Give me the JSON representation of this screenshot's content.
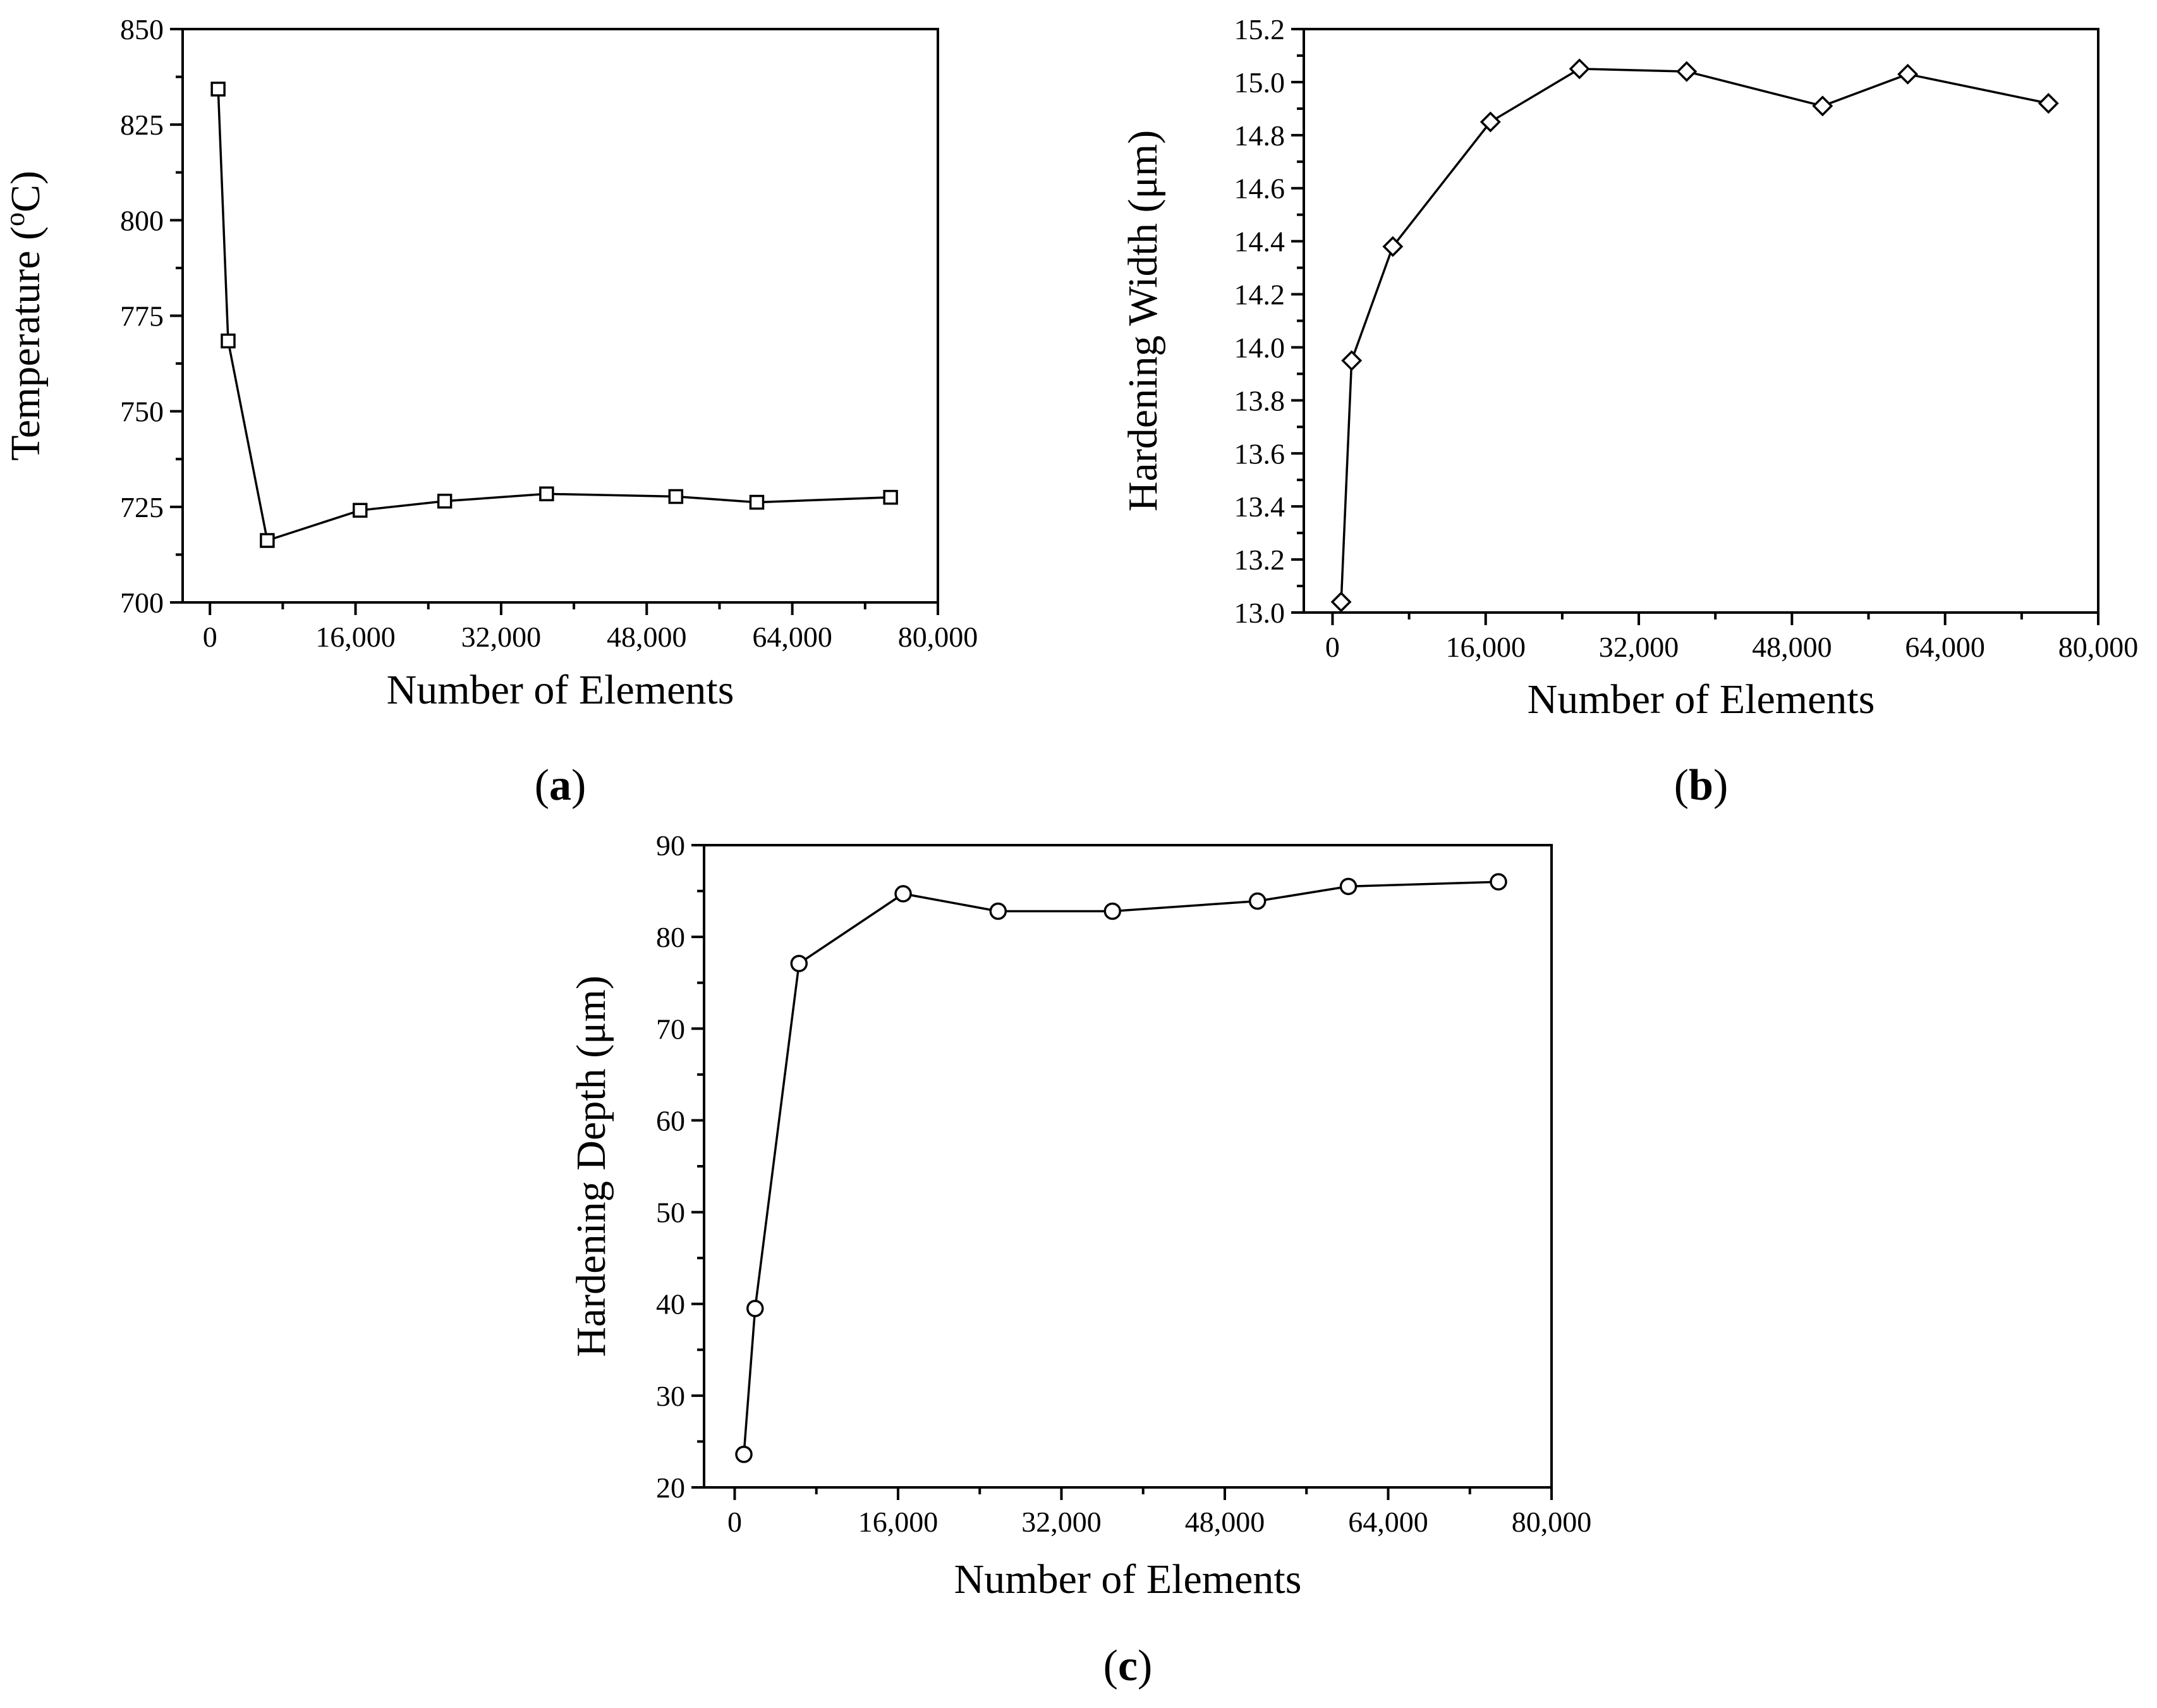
{
  "chart_data": [
    {
      "panel": "(a)",
      "panel_letter": "a",
      "type": "line",
      "marker": "square",
      "xlabel": "Number of Elements",
      "ylabel_main": "Temperature (",
      "ylabel_sup": "o",
      "ylabel_end": "C)",
      "xlim": [
        -3000,
        80000
      ],
      "ylim": [
        700,
        850
      ],
      "xticks": [
        0,
        16000,
        32000,
        48000,
        64000,
        80000
      ],
      "xtick_labels": [
        "0",
        "16,000",
        "32,000",
        "48,000",
        "64,000",
        "80,000"
      ],
      "yticks": [
        700,
        725,
        750,
        775,
        800,
        825,
        850
      ],
      "ytick_labels": [
        "700",
        "725",
        "750",
        "775",
        "800",
        "825",
        "850"
      ],
      "yminor_step": 12.5,
      "grid": false,
      "series": [
        {
          "x": [
            900,
            2000,
            6300,
            16500,
            25800,
            37000,
            51200,
            60100,
            74800
          ],
          "y": [
            834.3,
            768.4,
            716.2,
            724.1,
            726.5,
            728.4,
            727.7,
            726.2,
            727.5
          ]
        }
      ]
    },
    {
      "panel": "(b)",
      "panel_letter": "b",
      "type": "line",
      "marker": "diamond",
      "xlabel": "Number of Elements",
      "ylabel_main": "Hardening Width (μm)",
      "ylabel_sup": "",
      "ylabel_end": "",
      "xlim": [
        -3000,
        80000
      ],
      "ylim": [
        13.0,
        15.2
      ],
      "xticks": [
        0,
        16000,
        32000,
        48000,
        64000,
        80000
      ],
      "xtick_labels": [
        "0",
        "16,000",
        "32,000",
        "48,000",
        "64,000",
        "80,000"
      ],
      "yticks": [
        13.0,
        13.2,
        13.4,
        13.6,
        13.8,
        14.0,
        14.2,
        14.4,
        14.6,
        14.8,
        15.0,
        15.2
      ],
      "ytick_labels": [
        "13.0",
        "13.2",
        "13.4",
        "13.6",
        "13.8",
        "14.0",
        "14.2",
        "14.4",
        "14.6",
        "14.8",
        "15.0",
        "15.2"
      ],
      "yminor_step": 0.1,
      "grid": false,
      "series": [
        {
          "x": [
            900,
            2000,
            6300,
            16500,
            25800,
            37000,
            51200,
            60100,
            74800
          ],
          "y": [
            13.04,
            13.95,
            14.38,
            14.85,
            15.05,
            15.04,
            14.91,
            15.03,
            14.92
          ]
        }
      ]
    },
    {
      "panel": "(c)",
      "panel_letter": "c",
      "type": "line",
      "marker": "circle",
      "xlabel": "Number of Elements",
      "ylabel_main": "Hardening Depth (μm)",
      "ylabel_sup": "",
      "ylabel_end": "",
      "xlim": [
        -3000,
        80000
      ],
      "ylim": [
        20,
        90
      ],
      "xticks": [
        0,
        16000,
        32000,
        48000,
        64000,
        80000
      ],
      "xtick_labels": [
        "0",
        "16,000",
        "32,000",
        "48,000",
        "64,000",
        "80,000"
      ],
      "yticks": [
        20,
        30,
        40,
        50,
        60,
        70,
        80,
        90
      ],
      "ytick_labels": [
        "20",
        "30",
        "40",
        "50",
        "60",
        "70",
        "80",
        "90"
      ],
      "yminor_step": 5,
      "grid": false,
      "series": [
        {
          "x": [
            900,
            2000,
            6300,
            16500,
            25800,
            37000,
            51200,
            60100,
            74800
          ],
          "y": [
            23.6,
            39.5,
            77.1,
            84.7,
            82.8,
            82.8,
            83.9,
            85.5,
            86.0
          ]
        }
      ]
    }
  ]
}
